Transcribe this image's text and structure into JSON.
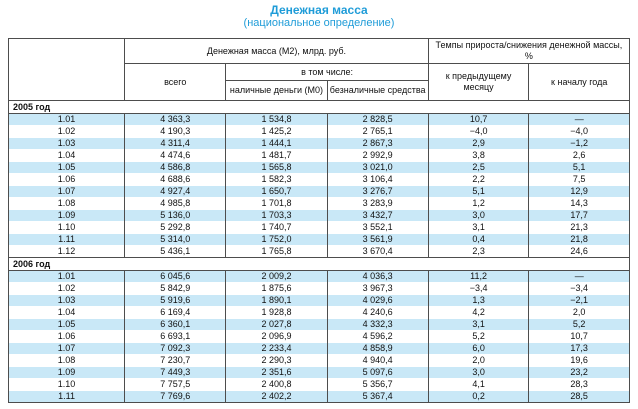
{
  "title": "Денежная масса",
  "subtitle": "(национальное определение)",
  "colors": {
    "title_blue": "#1f9cd8",
    "row_stripe_blue": "#c9e8f7",
    "border_gray": "#4d4d4d"
  },
  "table": {
    "group_headers": {
      "m2": "Денежная масса (М2), млрд. руб.",
      "rates": "Темпы прироста/снижения денежной массы, %"
    },
    "col_headers": {
      "total": "всего",
      "including": "в том числе:",
      "cash_m0": "наличные деньги (М0)",
      "non_cash": "безналичные средства",
      "to_prev_month": "к предыдущему месяцу",
      "to_year_start": "к началу года"
    },
    "sections": [
      {
        "label": "2005 год",
        "rows": [
          [
            "1.01",
            "4 363,3",
            "1 534,8",
            "2 828,5",
            "10,7",
            "—"
          ],
          [
            "1.02",
            "4 190,3",
            "1 425,2",
            "2 765,1",
            "−4,0",
            "−4,0"
          ],
          [
            "1.03",
            "4 311,4",
            "1 444,1",
            "2 867,3",
            "2,9",
            "−1,2"
          ],
          [
            "1.04",
            "4 474,6",
            "1 481,7",
            "2 992,9",
            "3,8",
            "2,6"
          ],
          [
            "1.05",
            "4 586,8",
            "1 565,8",
            "3 021,0",
            "2,5",
            "5,1"
          ],
          [
            "1.06",
            "4 688,6",
            "1 582,3",
            "3 106,4",
            "2,2",
            "7,5"
          ],
          [
            "1.07",
            "4 927,4",
            "1 650,7",
            "3 276,7",
            "5,1",
            "12,9"
          ],
          [
            "1.08",
            "4 985,8",
            "1 701,8",
            "3 283,9",
            "1,2",
            "14,3"
          ],
          [
            "1.09",
            "5 136,0",
            "1 703,3",
            "3 432,7",
            "3,0",
            "17,7"
          ],
          [
            "1.10",
            "5 292,8",
            "1 740,7",
            "3 552,1",
            "3,1",
            "21,3"
          ],
          [
            "1.11",
            "5 314,0",
            "1 752,0",
            "3 561,9",
            "0,4",
            "21,8"
          ],
          [
            "1.12",
            "5 436,1",
            "1 765,8",
            "3 670,4",
            "2,3",
            "24,6"
          ]
        ]
      },
      {
        "label": "2006 год",
        "rows": [
          [
            "1.01",
            "6 045,6",
            "2 009,2",
            "4 036,3",
            "11,2",
            "—"
          ],
          [
            "1.02",
            "5 842,9",
            "1 875,6",
            "3 967,3",
            "−3,4",
            "−3,4"
          ],
          [
            "1.03",
            "5 919,6",
            "1 890,1",
            "4 029,6",
            "1,3",
            "−2,1"
          ],
          [
            "1.04",
            "6 169,4",
            "1 928,8",
            "4 240,6",
            "4,2",
            "2,0"
          ],
          [
            "1.05",
            "6 360,1",
            "2 027,8",
            "4 332,3",
            "3,1",
            "5,2"
          ],
          [
            "1.06",
            "6 693,1",
            "2 096,9",
            "4 596,2",
            "5,2",
            "10,7"
          ],
          [
            "1.07",
            "7 092,3",
            "2 233,4",
            "4 858,9",
            "6,0",
            "17,3"
          ],
          [
            "1.08",
            "7 230,7",
            "2 290,3",
            "4 940,4",
            "2,0",
            "19,6"
          ],
          [
            "1.09",
            "7 449,3",
            "2 351,6",
            "5 097,6",
            "3,0",
            "23,2"
          ],
          [
            "1.10",
            "7 757,5",
            "2 400,8",
            "5 356,7",
            "4,1",
            "28,3"
          ],
          [
            "1.11",
            "7 769,6",
            "2 402,2",
            "5 367,4",
            "0,2",
            "28,5"
          ]
        ]
      }
    ]
  }
}
